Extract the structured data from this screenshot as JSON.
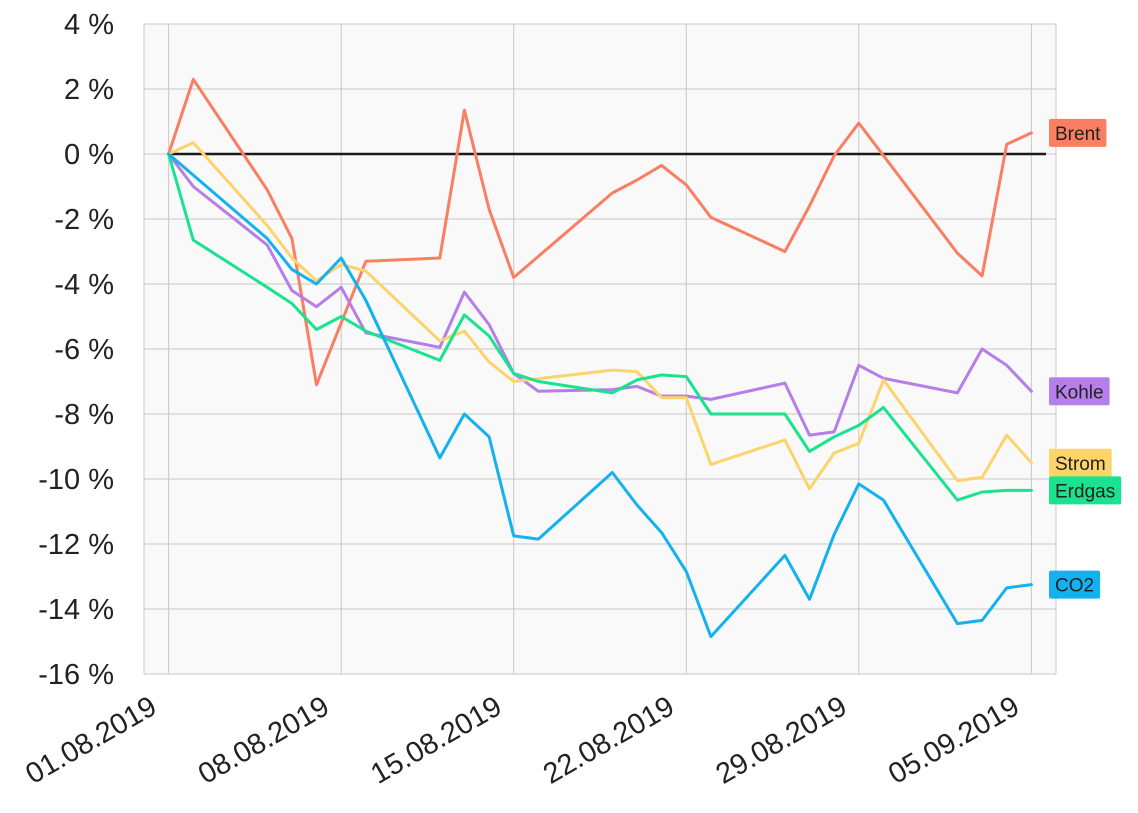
{
  "chart_data": {
    "type": "line",
    "title": "",
    "xlabel": "",
    "ylabel": "",
    "ylim": [
      -16,
      4
    ],
    "xlim": [
      "2019-07-31",
      "2019-09-06"
    ],
    "y_ticks": [
      4,
      2,
      0,
      -2,
      -4,
      -6,
      -8,
      -10,
      -12,
      -14,
      -16
    ],
    "y_tick_format": "{v} %",
    "x_ticks": [
      "2019-08-01",
      "2019-08-08",
      "2019-08-15",
      "2019-08-22",
      "2019-08-29",
      "2019-09-05"
    ],
    "x_tick_labels": [
      "01.08.2019",
      "08.08.2019",
      "15.08.2019",
      "22.08.2019",
      "29.08.2019",
      "05.09.2019"
    ],
    "grid": true,
    "zero_line": true,
    "legend_placement": "right-end-labels",
    "series": [
      {
        "name": "Brent",
        "color": "#FA7E61",
        "points": [
          [
            "2019-08-01",
            0
          ],
          [
            "2019-08-02",
            2.3
          ],
          [
            "2019-08-05",
            -1.1
          ],
          [
            "2019-08-06",
            -2.6
          ],
          [
            "2019-08-07",
            -7.1
          ],
          [
            "2019-08-09",
            -3.3
          ],
          [
            "2019-08-12",
            -3.2
          ],
          [
            "2019-08-13",
            1.35
          ],
          [
            "2019-08-14",
            -1.7
          ],
          [
            "2019-08-15",
            -3.8
          ],
          [
            "2019-08-19",
            -1.2
          ],
          [
            "2019-08-20",
            -0.8
          ],
          [
            "2019-08-21",
            -0.35
          ],
          [
            "2019-08-22",
            -0.95
          ],
          [
            "2019-08-23",
            -1.95
          ],
          [
            "2019-08-26",
            -3.0
          ],
          [
            "2019-08-27",
            -1.6
          ],
          [
            "2019-08-28",
            -0.05
          ],
          [
            "2019-08-29",
            0.95
          ],
          [
            "2019-09-02",
            -3.05
          ],
          [
            "2019-09-03",
            -3.75
          ],
          [
            "2019-09-04",
            0.3
          ],
          [
            "2019-09-05",
            0.65
          ]
        ]
      },
      {
        "name": "Kohle",
        "color": "#B57EE8",
        "points": [
          [
            "2019-08-01",
            0
          ],
          [
            "2019-08-02",
            -1.0
          ],
          [
            "2019-08-05",
            -2.8
          ],
          [
            "2019-08-06",
            -4.2
          ],
          [
            "2019-08-07",
            -4.7
          ],
          [
            "2019-08-08",
            -4.1
          ],
          [
            "2019-08-09",
            -5.5
          ],
          [
            "2019-08-12",
            -5.95
          ],
          [
            "2019-08-13",
            -4.25
          ],
          [
            "2019-08-14",
            -5.25
          ],
          [
            "2019-08-15",
            -6.75
          ],
          [
            "2019-08-16",
            -7.3
          ],
          [
            "2019-08-19",
            -7.25
          ],
          [
            "2019-08-20",
            -7.15
          ],
          [
            "2019-08-21",
            -7.45
          ],
          [
            "2019-08-22",
            -7.45
          ],
          [
            "2019-08-23",
            -7.55
          ],
          [
            "2019-08-26",
            -7.05
          ],
          [
            "2019-08-27",
            -8.65
          ],
          [
            "2019-08-28",
            -8.55
          ],
          [
            "2019-08-29",
            -6.5
          ],
          [
            "2019-08-30",
            -6.9
          ],
          [
            "2019-09-02",
            -7.35
          ],
          [
            "2019-09-03",
            -6.0
          ],
          [
            "2019-09-04",
            -6.5
          ],
          [
            "2019-09-05",
            -7.3
          ]
        ]
      },
      {
        "name": "Strom",
        "color": "#FDD36B",
        "points": [
          [
            "2019-08-01",
            0
          ],
          [
            "2019-08-02",
            0.35
          ],
          [
            "2019-08-05",
            -2.2
          ],
          [
            "2019-08-06",
            -3.2
          ],
          [
            "2019-08-07",
            -3.9
          ],
          [
            "2019-08-08",
            -3.4
          ],
          [
            "2019-08-09",
            -3.6
          ],
          [
            "2019-08-12",
            -5.75
          ],
          [
            "2019-08-13",
            -5.45
          ],
          [
            "2019-08-14",
            -6.4
          ],
          [
            "2019-08-15",
            -7.0
          ],
          [
            "2019-08-19",
            -6.65
          ],
          [
            "2019-08-20",
            -6.7
          ],
          [
            "2019-08-21",
            -7.5
          ],
          [
            "2019-08-22",
            -7.5
          ],
          [
            "2019-08-23",
            -9.55
          ],
          [
            "2019-08-26",
            -8.8
          ],
          [
            "2019-08-27",
            -10.3
          ],
          [
            "2019-08-28",
            -9.2
          ],
          [
            "2019-08-29",
            -8.9
          ],
          [
            "2019-08-30",
            -6.95
          ],
          [
            "2019-09-02",
            -10.05
          ],
          [
            "2019-09-03",
            -9.95
          ],
          [
            "2019-09-04",
            -8.65
          ],
          [
            "2019-09-05",
            -9.5
          ]
        ]
      },
      {
        "name": "Erdgas",
        "color": "#1AE38F",
        "points": [
          [
            "2019-08-01",
            0
          ],
          [
            "2019-08-02",
            -2.65
          ],
          [
            "2019-08-05",
            -4.1
          ],
          [
            "2019-08-06",
            -4.6
          ],
          [
            "2019-08-07",
            -5.4
          ],
          [
            "2019-08-08",
            -5.0
          ],
          [
            "2019-08-09",
            -5.45
          ],
          [
            "2019-08-12",
            -6.35
          ],
          [
            "2019-08-13",
            -4.95
          ],
          [
            "2019-08-14",
            -5.6
          ],
          [
            "2019-08-15",
            -6.75
          ],
          [
            "2019-08-16",
            -7.0
          ],
          [
            "2019-08-19",
            -7.35
          ],
          [
            "2019-08-20",
            -6.95
          ],
          [
            "2019-08-21",
            -6.8
          ],
          [
            "2019-08-22",
            -6.85
          ],
          [
            "2019-08-23",
            -8.0
          ],
          [
            "2019-08-26",
            -8.0
          ],
          [
            "2019-08-27",
            -9.15
          ],
          [
            "2019-08-28",
            -8.7
          ],
          [
            "2019-08-29",
            -8.35
          ],
          [
            "2019-08-30",
            -7.8
          ],
          [
            "2019-09-02",
            -10.65
          ],
          [
            "2019-09-03",
            -10.4
          ],
          [
            "2019-09-04",
            -10.35
          ],
          [
            "2019-09-05",
            -10.35
          ]
        ]
      },
      {
        "name": "CO2",
        "color": "#14B1EF",
        "points": [
          [
            "2019-08-01",
            0
          ],
          [
            "2019-08-05",
            -2.6
          ],
          [
            "2019-08-06",
            -3.55
          ],
          [
            "2019-08-07",
            -4.0
          ],
          [
            "2019-08-08",
            -3.2
          ],
          [
            "2019-08-09",
            -4.5
          ],
          [
            "2019-08-12",
            -9.35
          ],
          [
            "2019-08-13",
            -8.0
          ],
          [
            "2019-08-14",
            -8.7
          ],
          [
            "2019-08-15",
            -11.75
          ],
          [
            "2019-08-16",
            -11.85
          ],
          [
            "2019-08-19",
            -9.8
          ],
          [
            "2019-08-20",
            -10.8
          ],
          [
            "2019-08-21",
            -11.65
          ],
          [
            "2019-08-22",
            -12.85
          ],
          [
            "2019-08-23",
            -14.85
          ],
          [
            "2019-08-26",
            -12.35
          ],
          [
            "2019-08-27",
            -13.7
          ],
          [
            "2019-08-28",
            -11.7
          ],
          [
            "2019-08-29",
            -10.15
          ],
          [
            "2019-08-30",
            -10.65
          ],
          [
            "2019-09-02",
            -14.45
          ],
          [
            "2019-09-03",
            -14.35
          ],
          [
            "2019-09-04",
            -13.35
          ],
          [
            "2019-09-05",
            -13.25
          ]
        ]
      }
    ]
  }
}
